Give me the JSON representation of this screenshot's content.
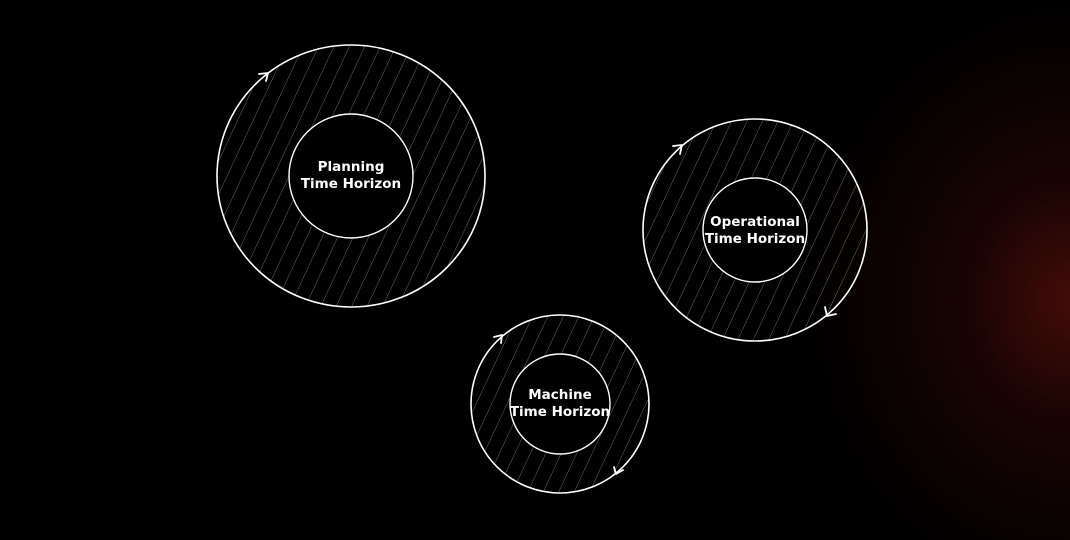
{
  "colors": {
    "background": "#000000",
    "stroke": "#ffffff",
    "hatch": "#6a6a6a",
    "glow": "#7a1610"
  },
  "rings": [
    {
      "id": "planning",
      "line1": "Planning",
      "line2": "Time Horizon",
      "arrows": [
        "arrow-top-left"
      ]
    },
    {
      "id": "operational",
      "line1": "Operational",
      "line2": "Time Horizon",
      "arrows": [
        "arrow-top-left",
        "arrow-bottom-right"
      ]
    },
    {
      "id": "machine",
      "line1": "Machine",
      "line2": "Time Horizon",
      "arrows": [
        "arrow-top-left",
        "arrow-bottom-right"
      ]
    }
  ]
}
